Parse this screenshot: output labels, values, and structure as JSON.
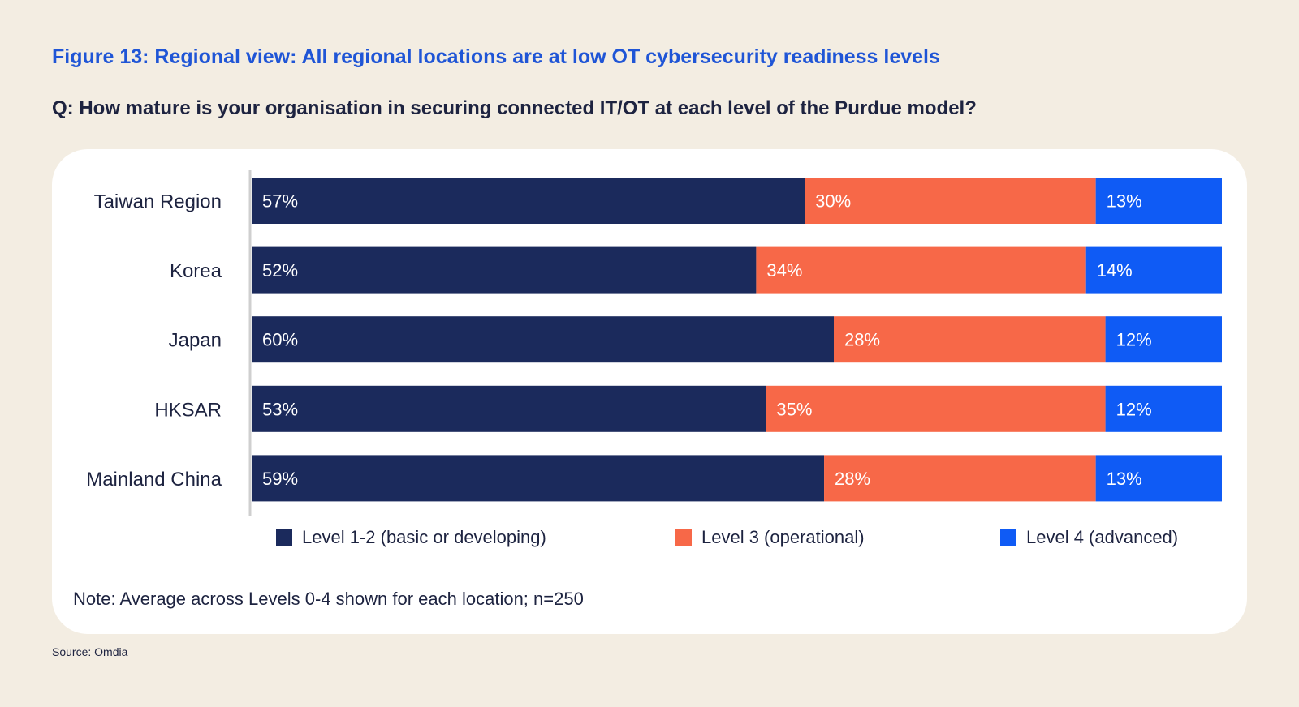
{
  "figure_title": "Figure 13: Regional view: All regional locations are at low OT cybersecurity readiness levels",
  "question": "Q: How mature is your organisation in securing connected IT/OT at each level of the Purdue model?",
  "note": "Note: Average across Levels 0-4 shown for each location; n=250",
  "source": "Source: Omdia",
  "colors": {
    "level12": "#1b2a5c",
    "level3": "#f76848",
    "level4": "#0f5bf5",
    "page_bg": "#f3ede2",
    "card_bg": "#ffffff",
    "title": "#1f55d6"
  },
  "chart_data": {
    "type": "bar",
    "orientation": "horizontal",
    "stacked": true,
    "title": "Figure 13: Regional view: All regional locations are at low OT cybersecurity readiness levels",
    "xlabel": "",
    "ylabel": "",
    "xlim": [
      0,
      100
    ],
    "legend_position": "bottom",
    "grid": false,
    "categories": [
      "Taiwan Region",
      "Korea",
      "Japan",
      "HKSAR",
      "Mainland China"
    ],
    "series": [
      {
        "name": "Level 1-2 (basic or developing)",
        "values": [
          57,
          52,
          60,
          53,
          59
        ]
      },
      {
        "name": "Level 3 (operational)",
        "values": [
          30,
          34,
          28,
          35,
          28
        ]
      },
      {
        "name": "Level 4 (advanced)",
        "values": [
          13,
          14,
          12,
          12,
          13
        ]
      }
    ],
    "data_labels": [
      [
        "57%",
        "52%",
        "60%",
        "53%",
        "59%"
      ],
      [
        "30%",
        "34%",
        "28%",
        "35%",
        "28%"
      ],
      [
        "13%",
        "14%",
        "12%",
        "12%",
        "13%"
      ]
    ]
  }
}
